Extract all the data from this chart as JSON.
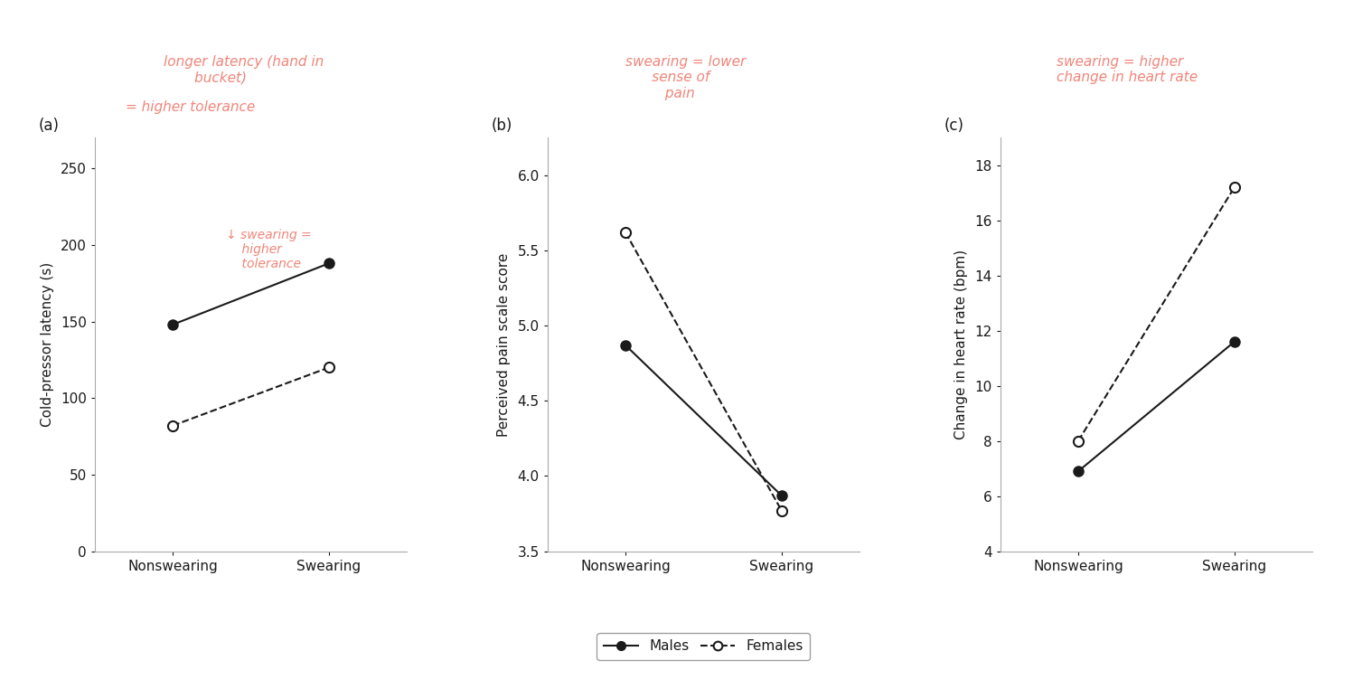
{
  "panel_a": {
    "label": "(a)",
    "ylabel": "Cold-pressor latency (s)",
    "xlabel_ticks": [
      "Nonswearing",
      "Swearing"
    ],
    "ylim": [
      0,
      270
    ],
    "yticks": [
      0,
      50,
      100,
      150,
      200,
      250
    ],
    "males": [
      148,
      188
    ],
    "females": [
      82,
      120
    ]
  },
  "panel_b": {
    "label": "(b)",
    "ylabel": "Perceived pain scale score",
    "xlabel_ticks": [
      "Nonswearing",
      "Swearing"
    ],
    "ylim": [
      3.5,
      6.25
    ],
    "yticks": [
      3.5,
      4.0,
      4.5,
      5.0,
      5.5,
      6.0
    ],
    "males": [
      4.87,
      3.87
    ],
    "females": [
      5.62,
      3.77
    ]
  },
  "panel_c": {
    "label": "(c)",
    "ylabel": "Change in heart rate (bpm)",
    "xlabel_ticks": [
      "Nonswearing",
      "Swearing"
    ],
    "ylim": [
      4,
      19
    ],
    "yticks": [
      4,
      6,
      8,
      10,
      12,
      14,
      16,
      18
    ],
    "males": [
      6.9,
      11.6
    ],
    "females": [
      8.0,
      17.2
    ]
  },
  "legend": {
    "males_label": "Males",
    "females_label": "Females"
  },
  "annotation_color": "#f0857a",
  "line_color": "#1a1a1a",
  "axis_label_color": "#1a1a1a",
  "tick_label_color": "#1a1a1a",
  "background_color": "#ffffff"
}
